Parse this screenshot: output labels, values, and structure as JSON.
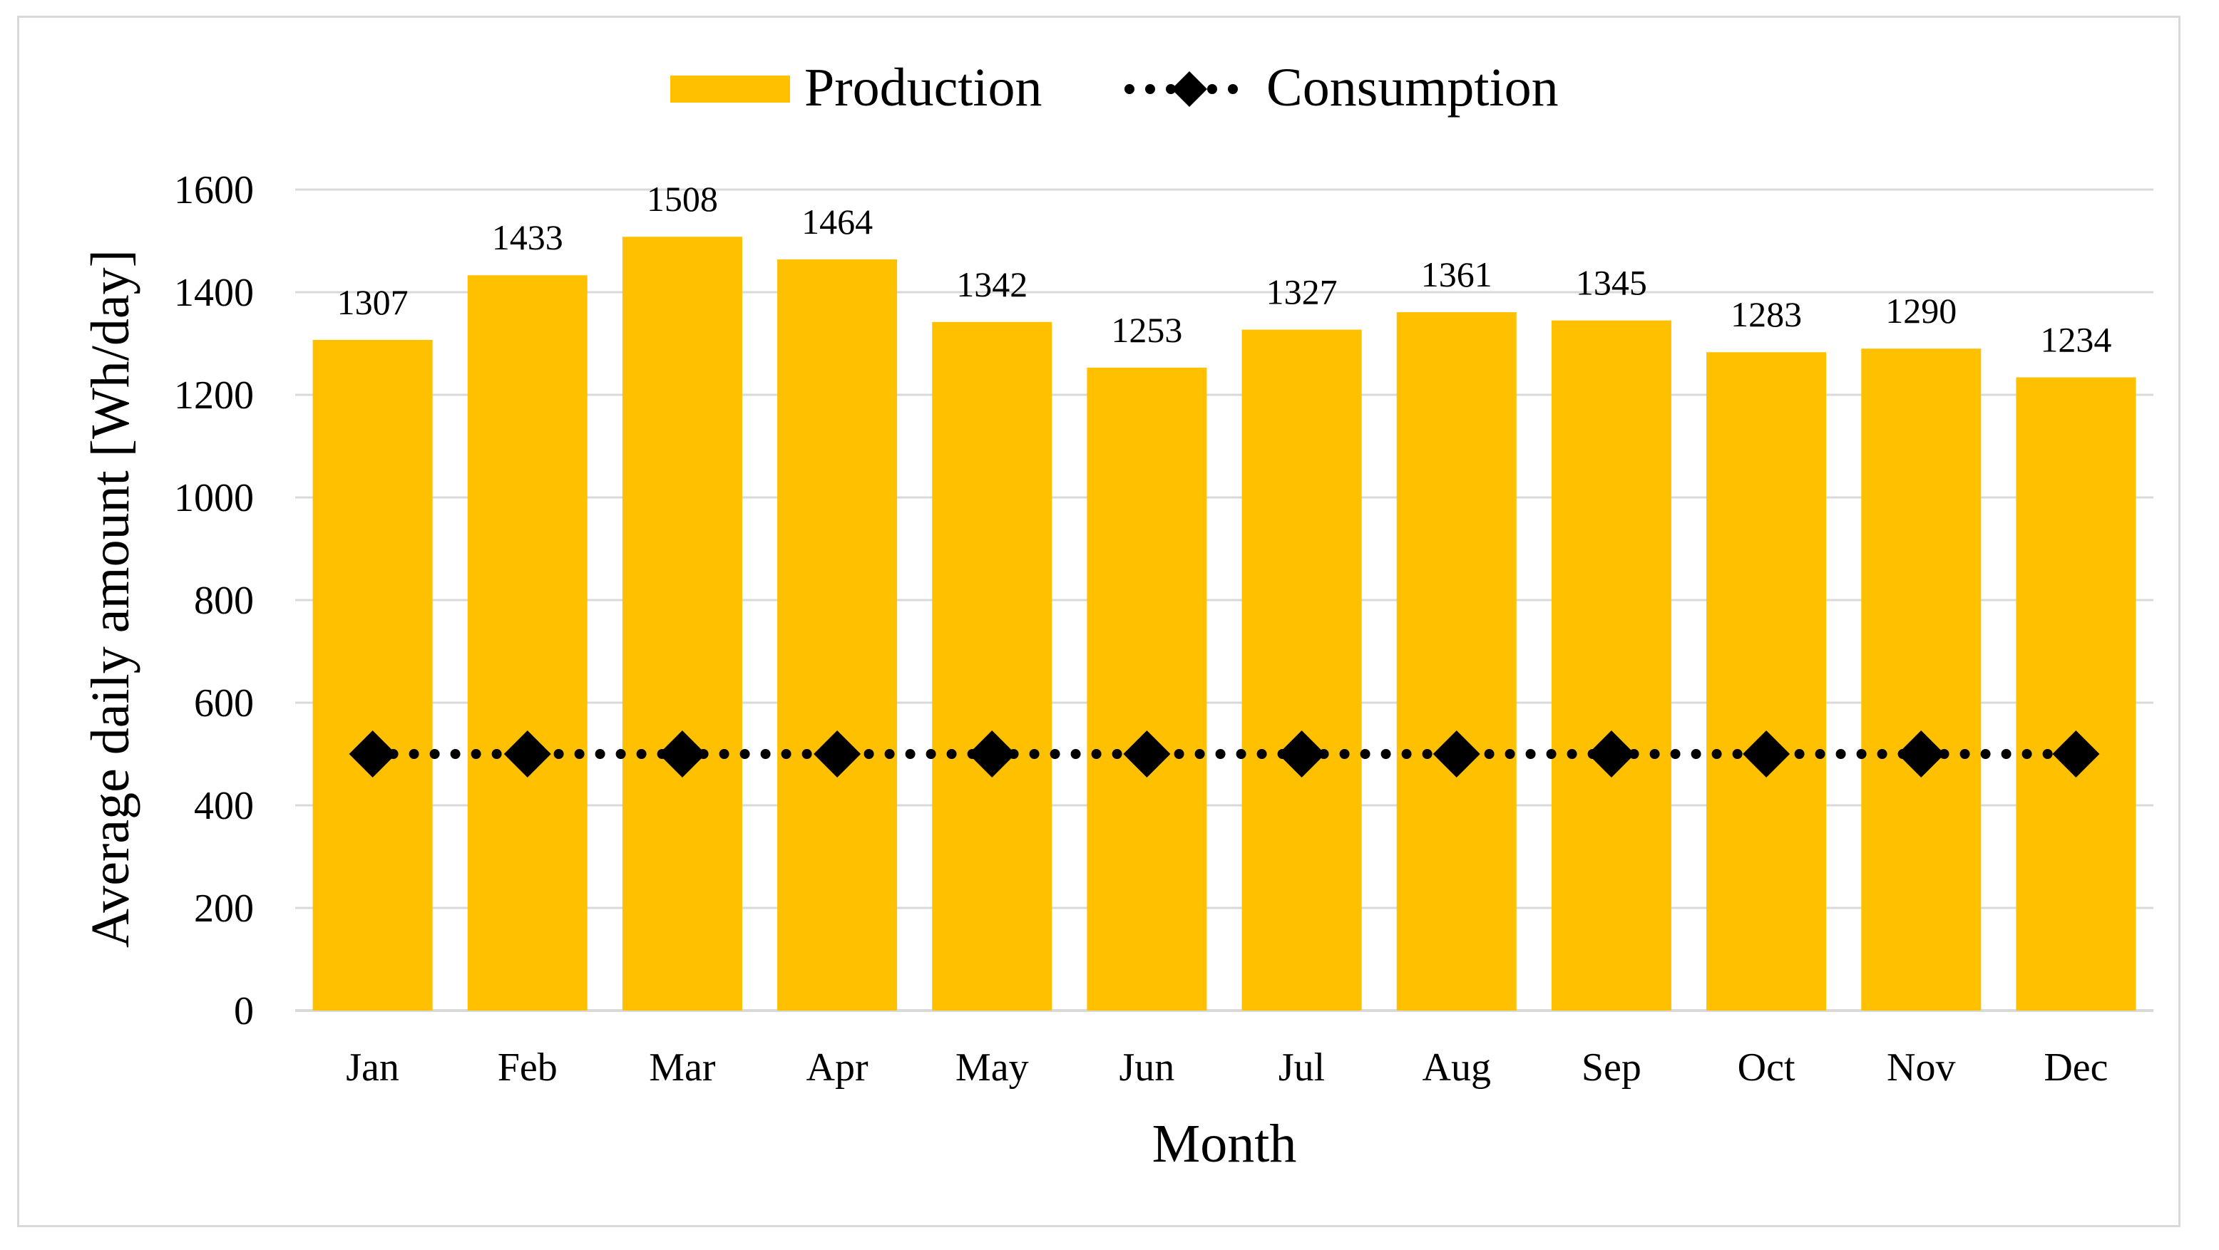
{
  "chart_data": {
    "type": "bar",
    "categories": [
      "Jan",
      "Feb",
      "Mar",
      "Apr",
      "May",
      "Jun",
      "Jul",
      "Aug",
      "Sep",
      "Oct",
      "Nov",
      "Dec"
    ],
    "series": [
      {
        "name": "Production",
        "kind": "bar",
        "color": "#FFC000",
        "values": [
          1307,
          1433,
          1508,
          1464,
          1342,
          1253,
          1327,
          1361,
          1345,
          1283,
          1290,
          1234
        ],
        "data_labels": [
          "1307",
          "1433",
          "1508",
          "1464",
          "1342",
          "1253",
          "1327",
          "1361",
          "1345",
          "1283",
          "1290",
          "1234"
        ]
      },
      {
        "name": "Consumption",
        "kind": "line",
        "line_style": "dotted",
        "marker": "diamond",
        "color": "#000000",
        "values": [
          500,
          500,
          500,
          500,
          500,
          500,
          500,
          500,
          500,
          500,
          500,
          500
        ]
      }
    ],
    "title": "",
    "xlabel": "Month",
    "ylabel": "Average daily amount [Wh/day]",
    "ylim": [
      0,
      1600
    ],
    "yticks": [
      "0",
      "200",
      "400",
      "600",
      "800",
      "1000",
      "1200",
      "1400",
      "1600"
    ],
    "grid": true,
    "legend_position": "top-center"
  }
}
